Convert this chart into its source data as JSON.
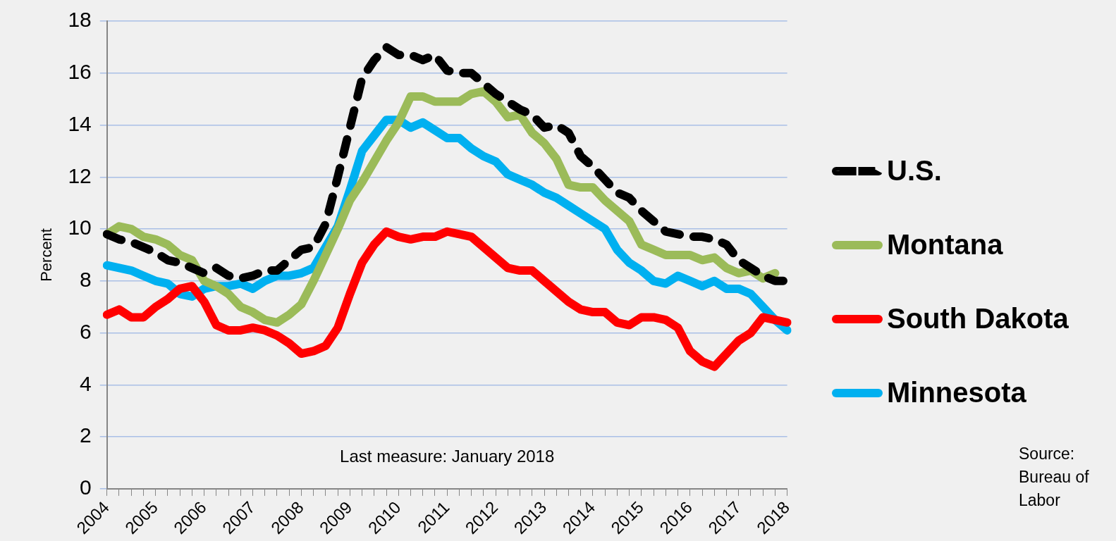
{
  "chart_data": {
    "type": "line",
    "ylabel": "Percent",
    "categories": [
      "2004",
      null,
      null,
      null,
      "2005",
      null,
      null,
      null,
      "2006",
      null,
      null,
      null,
      "2007",
      null,
      null,
      null,
      "2008",
      null,
      null,
      null,
      "2009",
      null,
      null,
      null,
      "2010",
      null,
      null,
      null,
      "2011",
      null,
      null,
      null,
      "2012",
      null,
      null,
      null,
      "2013",
      null,
      null,
      null,
      "2014",
      null,
      null,
      null,
      "2015",
      null,
      null,
      null,
      "2016",
      null,
      null,
      null,
      "2017",
      null,
      null,
      null,
      "2018"
    ],
    "series": [
      {
        "name": "U.S.",
        "color": "#000000",
        "line_style": "dashed",
        "values": [
          9.8,
          9.6,
          9.5,
          9.3,
          9.1,
          8.8,
          8.7,
          8.5,
          8.3,
          8.5,
          8.2,
          8.1,
          8.2,
          8.4,
          8.4,
          8.8,
          9.2,
          9.3,
          10.2,
          12.0,
          13.9,
          15.8,
          16.5,
          17.0,
          16.7,
          16.7,
          16.5,
          16.7,
          16.1,
          16.0,
          16.0,
          15.6,
          15.2,
          14.9,
          14.6,
          14.4,
          13.9,
          14.0,
          13.7,
          12.8,
          12.4,
          11.9,
          11.4,
          11.2,
          10.7,
          10.3,
          9.9,
          9.8,
          9.7,
          9.7,
          9.6,
          9.4,
          8.8,
          8.5,
          8.2,
          8.0,
          8.0
        ]
      },
      {
        "name": "Montana",
        "color": "#9bbb59",
        "line_style": "solid",
        "values": [
          9.8,
          10.1,
          10.0,
          9.7,
          9.6,
          9.4,
          9.0,
          8.8,
          8.0,
          7.8,
          7.5,
          7.0,
          6.8,
          6.5,
          6.4,
          6.7,
          7.1,
          8.0,
          9.0,
          10.0,
          11.1,
          11.8,
          12.6,
          13.4,
          14.1,
          15.1,
          15.1,
          14.9,
          14.9,
          14.9,
          15.2,
          15.3,
          14.9,
          14.3,
          14.4,
          13.7,
          13.3,
          12.7,
          11.7,
          11.6,
          11.6,
          11.1,
          10.7,
          10.3,
          9.4,
          9.2,
          9.0,
          9.0,
          9.0,
          8.8,
          8.9,
          8.5,
          8.3,
          8.4,
          8.1,
          8.3,
          null
        ]
      },
      {
        "name": "South Dakota",
        "color": "#ff0000",
        "line_style": "solid",
        "values": [
          6.7,
          6.9,
          6.6,
          6.6,
          7.0,
          7.3,
          7.7,
          7.8,
          7.2,
          6.3,
          6.1,
          6.1,
          6.2,
          6.1,
          5.9,
          5.6,
          5.2,
          5.3,
          5.5,
          6.2,
          7.5,
          8.7,
          9.4,
          9.9,
          9.7,
          9.6,
          9.7,
          9.7,
          9.9,
          9.8,
          9.7,
          9.3,
          8.9,
          8.5,
          8.4,
          8.4,
          8.0,
          7.6,
          7.2,
          6.9,
          6.8,
          6.8,
          6.4,
          6.3,
          6.6,
          6.6,
          6.5,
          6.2,
          5.3,
          4.9,
          4.7,
          5.2,
          5.7,
          6.0,
          6.6,
          6.5,
          6.4
        ]
      },
      {
        "name": "Minnesota",
        "color": "#00b0f0",
        "line_style": "solid",
        "values": [
          8.6,
          8.5,
          8.4,
          8.2,
          8.0,
          7.9,
          7.5,
          7.4,
          7.7,
          7.8,
          7.8,
          7.9,
          7.7,
          8.0,
          8.2,
          8.2,
          8.3,
          8.5,
          9.3,
          10.1,
          11.5,
          13.0,
          13.6,
          14.2,
          14.2,
          13.9,
          14.1,
          13.8,
          13.5,
          13.5,
          13.1,
          12.8,
          12.6,
          12.1,
          11.9,
          11.7,
          11.4,
          11.2,
          10.9,
          10.6,
          10.3,
          10.0,
          9.2,
          8.7,
          8.4,
          8.0,
          7.9,
          8.2,
          8.0,
          7.8,
          8.0,
          7.7,
          7.7,
          7.5,
          7.0,
          6.5,
          6.1
        ]
      }
    ],
    "ylim": [
      0,
      18
    ],
    "yticks": [
      0,
      2,
      4,
      6,
      8,
      10,
      12,
      14,
      16,
      18
    ],
    "grid": "y",
    "legend": "right",
    "marker": "none",
    "annotations": [
      "Last measure: January 2018",
      "Source: Bureau of Labor"
    ]
  }
}
